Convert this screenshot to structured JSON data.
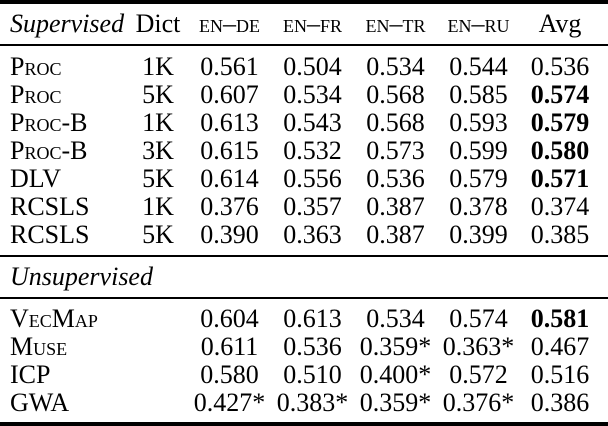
{
  "colors": {
    "background": "#ffffff",
    "text": "#000000",
    "rule": "#000000"
  },
  "header": {
    "section_label": "Supervised",
    "dict_label": "Dict",
    "pair_labels": [
      "EN–DE",
      "EN–FR",
      "EN–TR",
      "EN–RU"
    ],
    "avg_label": "Avg"
  },
  "sections": {
    "unsupervised_label": "Unsupervised"
  },
  "supervised_rows": [
    {
      "method": "Proc",
      "dict": "1K",
      "values": [
        "0.561",
        "0.504",
        "0.534",
        "0.544"
      ],
      "avg": "0.536",
      "avg_bold": false
    },
    {
      "method": "Proc",
      "dict": "5K",
      "values": [
        "0.607",
        "0.534",
        "0.568",
        "0.585"
      ],
      "avg": "0.574",
      "avg_bold": true
    },
    {
      "method": "Proc-B",
      "dict": "1K",
      "values": [
        "0.613",
        "0.543",
        "0.568",
        "0.593"
      ],
      "avg": "0.579",
      "avg_bold": true
    },
    {
      "method": "Proc-B",
      "dict": "3K",
      "values": [
        "0.615",
        "0.532",
        "0.573",
        "0.599"
      ],
      "avg": "0.580",
      "avg_bold": true
    },
    {
      "method": "DLV",
      "dict": "5K",
      "values": [
        "0.614",
        "0.556",
        "0.536",
        "0.579"
      ],
      "avg": "0.571",
      "avg_bold": true
    },
    {
      "method": "RCSLS",
      "dict": "1K",
      "values": [
        "0.376",
        "0.357",
        "0.387",
        "0.378"
      ],
      "avg": "0.374",
      "avg_bold": false
    },
    {
      "method": "RCSLS",
      "dict": "5K",
      "values": [
        "0.390",
        "0.363",
        "0.387",
        "0.399"
      ],
      "avg": "0.385",
      "avg_bold": false
    }
  ],
  "unsupervised_rows": [
    {
      "method": "VecMap",
      "dict": "",
      "values": [
        "0.604",
        "0.613",
        "0.534",
        "0.574"
      ],
      "avg": "0.581",
      "avg_bold": true
    },
    {
      "method": "Muse",
      "dict": "",
      "values": [
        "0.611",
        "0.536",
        "0.359*",
        "0.363*"
      ],
      "avg": "0.467",
      "avg_bold": false
    },
    {
      "method": "ICP",
      "dict": "",
      "values": [
        "0.580",
        "0.510",
        "0.400*",
        "0.572"
      ],
      "avg": "0.516",
      "avg_bold": false
    },
    {
      "method": "GWA",
      "dict": "",
      "values": [
        "0.427*",
        "0.383*",
        "0.359*",
        "0.376*"
      ],
      "avg": "0.386",
      "avg_bold": false
    }
  ]
}
